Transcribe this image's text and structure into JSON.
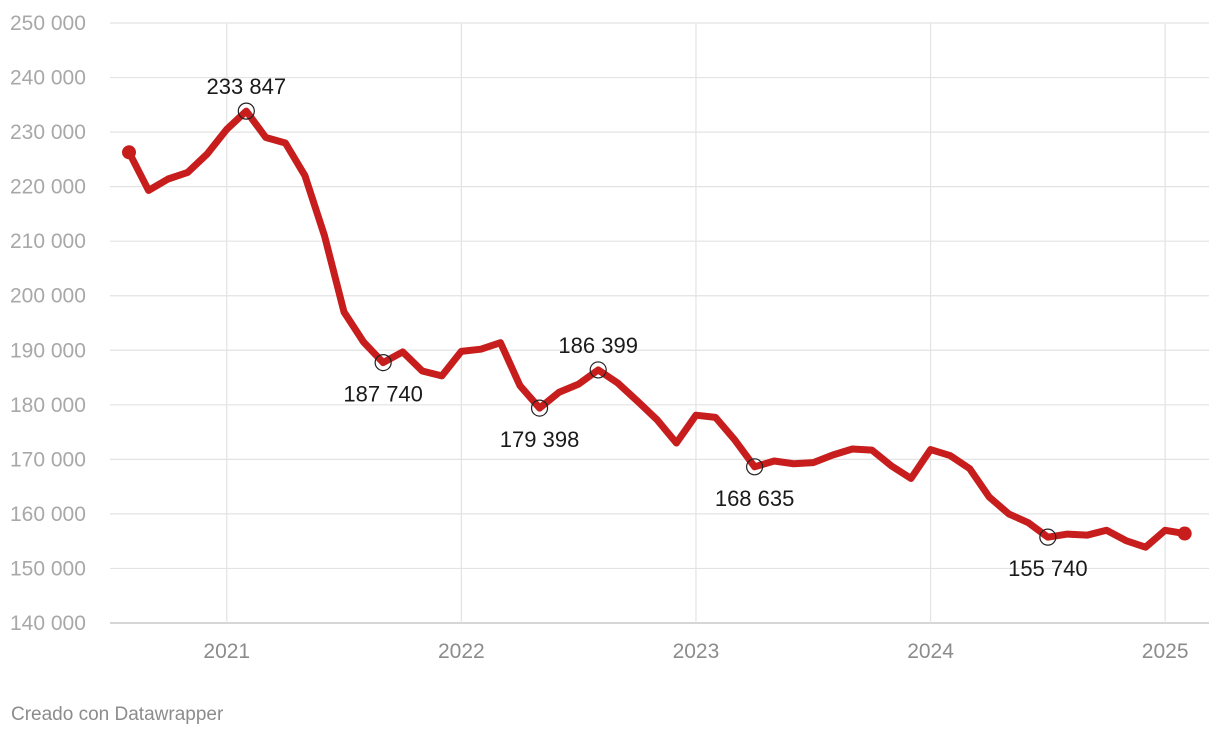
{
  "chart_data": {
    "type": "line",
    "x_start": "2020-08",
    "x_step": "month",
    "x_ticks": [
      "2021",
      "2022",
      "2023",
      "2024",
      "2025"
    ],
    "y_ticks": [
      "250 000",
      "240 000",
      "230 000",
      "220 000",
      "210 000",
      "200 000",
      "190 000",
      "180 000",
      "170 000",
      "160 000",
      "150 000",
      "140 000"
    ],
    "ylim": [
      140000,
      250000
    ],
    "grid": true,
    "series": [
      {
        "color": "#c71e1d",
        "values": [
          226300,
          219300,
          221400,
          222600,
          226000,
          230500,
          233847,
          229000,
          228000,
          222000,
          211000,
          197000,
          191500,
          187740,
          189700,
          186200,
          185300,
          189800,
          190200,
          191400,
          183500,
          179398,
          182300,
          183800,
          186399,
          184000,
          180700,
          177300,
          173000,
          178100,
          177700,
          173500,
          168635,
          169700,
          169200,
          169400,
          170800,
          171900,
          171700,
          168800,
          166500,
          171800,
          170700,
          168300,
          163100,
          160000,
          158400,
          155740,
          156300,
          156100,
          157000,
          155100,
          153900,
          157000,
          156400
        ]
      }
    ],
    "annotations": [
      {
        "index": 6,
        "value": 233847,
        "label": "233 847",
        "position": "above"
      },
      {
        "index": 13,
        "value": 187740,
        "label": "187 740",
        "position": "below"
      },
      {
        "index": 21,
        "value": 179398,
        "label": "179 398",
        "position": "below"
      },
      {
        "index": 24,
        "value": 186399,
        "label": "186 399",
        "position": "above"
      },
      {
        "index": 32,
        "value": 168635,
        "label": "168 635",
        "position": "below"
      },
      {
        "index": 47,
        "value": 155740,
        "label": "155 740",
        "position": "below"
      }
    ]
  },
  "footer": {
    "credit": "Creado con Datawrapper"
  }
}
